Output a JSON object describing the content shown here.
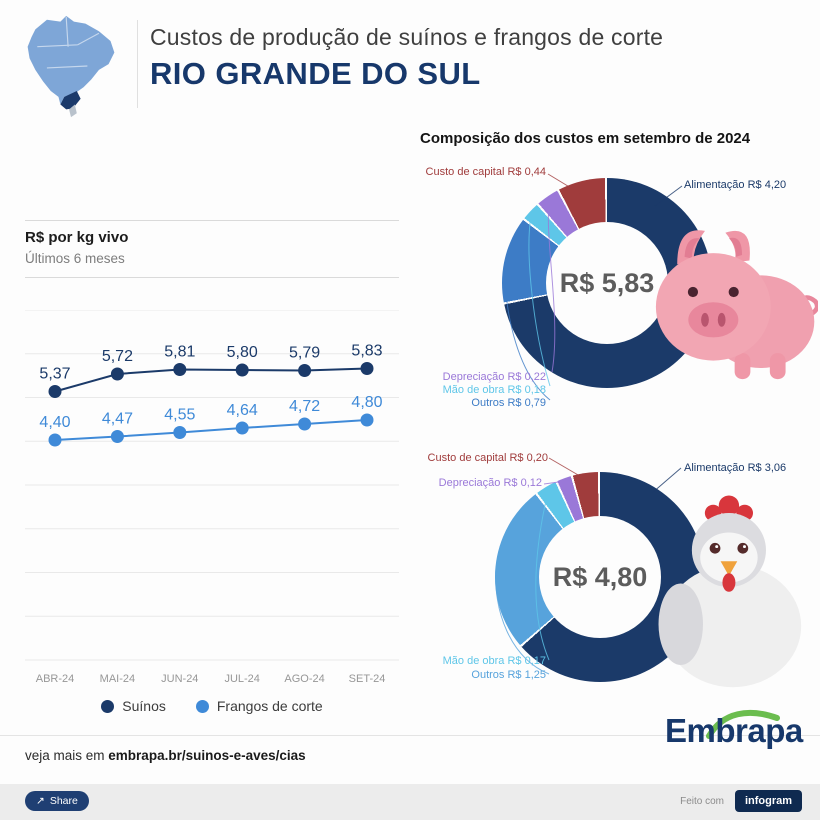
{
  "header": {
    "title": "Custos de produção de suínos e frangos de corte",
    "region": "RIO GRANDE DO SUL",
    "accent_color": "#17386b"
  },
  "donut_section": {
    "heading": "Composição dos custos em setembro de 2024"
  },
  "footer": {
    "more_text": "veja mais em",
    "more_link": "embrapa.br/suinos-e-aves/cias",
    "brand": "Embrapa",
    "share_label": "Share",
    "made_with": "Feito com",
    "made_with_brand": "infogram"
  },
  "chart_data": [
    {
      "type": "line",
      "title": "R$ por kg vivo",
      "subtitle": "Últimos 6 meses",
      "categories": [
        "ABR-24",
        "MAI-24",
        "JUN-24",
        "JUL-24",
        "AGO-24",
        "SET-24"
      ],
      "series": [
        {
          "name": "Suínos",
          "color": "#1b3a69",
          "values": [
            5.37,
            5.72,
            5.81,
            5.8,
            5.79,
            5.83
          ],
          "labels": [
            "5,37",
            "5,72",
            "5,81",
            "5,80",
            "5,79",
            "5,83"
          ]
        },
        {
          "name": "Frangos de corte",
          "color": "#3f8ad8",
          "values": [
            4.4,
            4.47,
            4.55,
            4.64,
            4.72,
            4.8
          ],
          "labels": [
            "4,40",
            "4,47",
            "4,55",
            "4,64",
            "4,72",
            "4,80"
          ]
        }
      ],
      "ylim": [
        0,
        7
      ],
      "grid": true,
      "legend_position": "bottom"
    },
    {
      "type": "donut",
      "subject": "Suínos",
      "center_label": "R$ 5,83",
      "total": 5.83,
      "slices": [
        {
          "name": "Alimentação",
          "value": 4.2,
          "label": "Alimentação R$ 4,20",
          "color": "#1b3a69"
        },
        {
          "name": "Outros",
          "value": 0.79,
          "label": "Outros R$ 0,79",
          "color": "#3d7cc6"
        },
        {
          "name": "Mão de obra",
          "value": 0.18,
          "label": "Mão de obra R$ 0,18",
          "color": "#5ec6e8"
        },
        {
          "name": "Depreciação",
          "value": 0.22,
          "label": "Depreciação R$ 0,22",
          "color": "#9a78d8"
        },
        {
          "name": "Custo de capital",
          "value": 0.44,
          "label": "Custo de capital R$ 0,44",
          "color": "#a03c3c"
        }
      ]
    },
    {
      "type": "donut",
      "subject": "Frangos de corte",
      "center_label": "R$ 4,80",
      "total": 4.8,
      "slices": [
        {
          "name": "Alimentação",
          "value": 3.06,
          "label": "Alimentação R$ 3,06",
          "color": "#1b3a69"
        },
        {
          "name": "Outros",
          "value": 1.25,
          "label": "Outros R$ 1,25",
          "color": "#57a3dc"
        },
        {
          "name": "Mão de obra",
          "value": 0.17,
          "label": "Mão de obra R$ 0,17",
          "color": "#5ec6e8"
        },
        {
          "name": "Depreciação",
          "value": 0.12,
          "label": "Depreciação R$ 0,12",
          "color": "#9a78d8"
        },
        {
          "name": "Custo de capital",
          "value": 0.2,
          "label": "Custo de capital R$ 0,20",
          "color": "#a03c3c"
        }
      ]
    }
  ]
}
